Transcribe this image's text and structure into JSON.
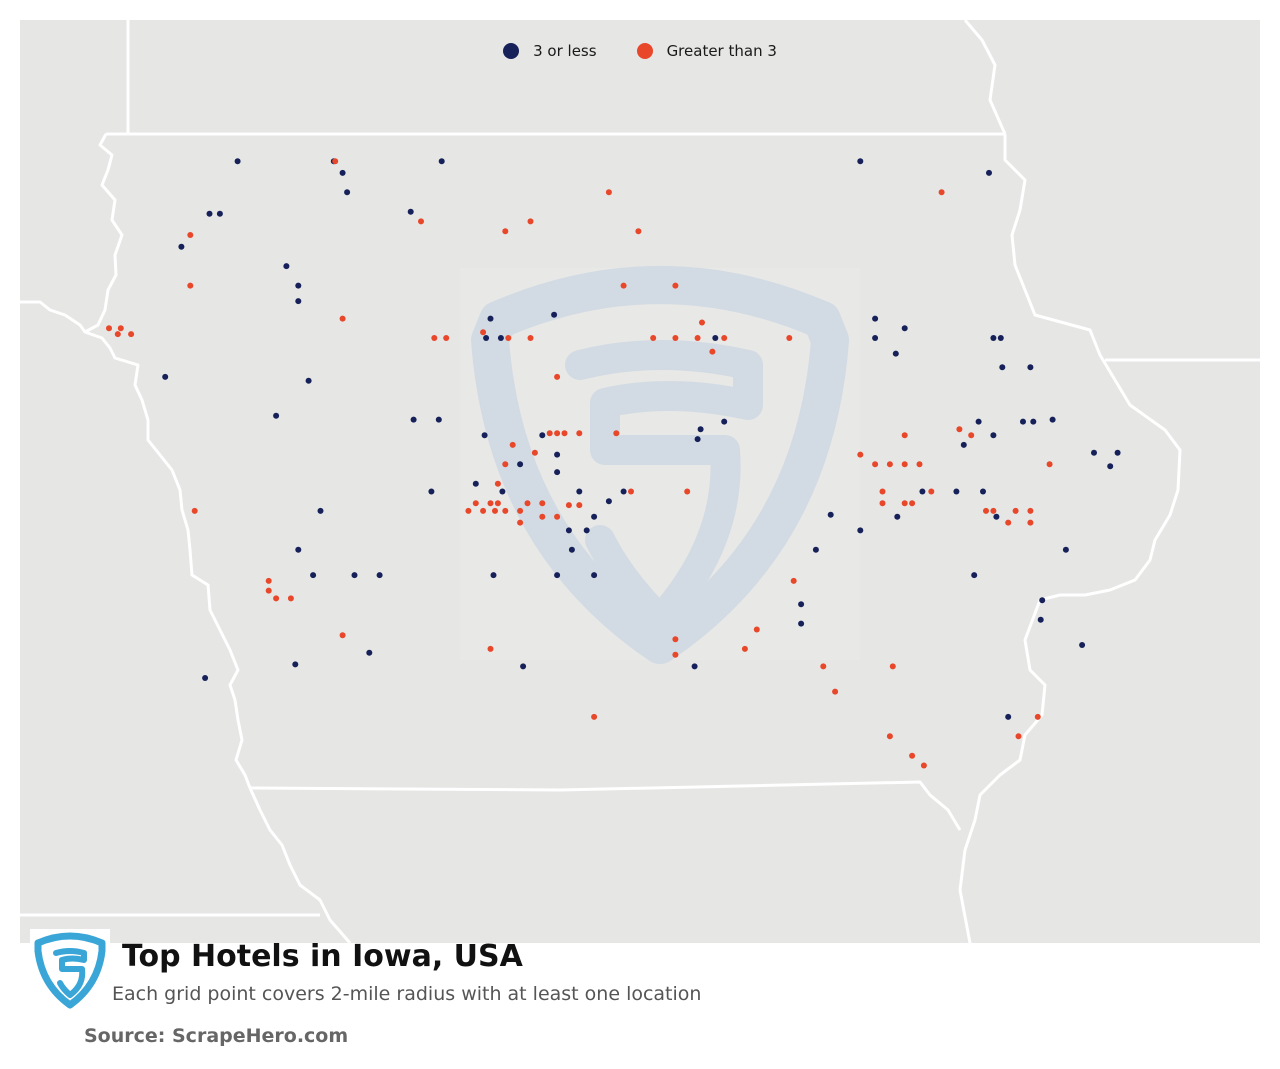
{
  "legend": {
    "items": [
      {
        "label": "3 or less",
        "color": "#16215a"
      },
      {
        "label": "Greater than 3",
        "color": "#e8472a"
      }
    ]
  },
  "footer": {
    "title": "Top Hotels in Iowa, USA",
    "subtitle": "Each grid point covers 2-mile radius with at least one location",
    "source": "Source: ScrapeHero.com",
    "logo_icon": "scrapehero-shield-logo-icon"
  },
  "map": {
    "region": "Iowa, USA",
    "colors": {
      "background": "#e6e6e4",
      "border": "#ffffff",
      "watermark": "#d2dbe3"
    },
    "points_low": [
      [
        -95.71,
        43.36
      ],
      [
        -95.06,
        43.36
      ],
      [
        -94.33,
        43.36
      ],
      [
        -91.5,
        43.36
      ],
      [
        -95.0,
        43.3
      ],
      [
        -94.97,
        43.2
      ],
      [
        -90.63,
        43.3
      ],
      [
        -95.9,
        43.09
      ],
      [
        -95.83,
        43.09
      ],
      [
        -94.54,
        43.1
      ],
      [
        -96.09,
        42.92
      ],
      [
        -95.38,
        42.82
      ],
      [
        -95.3,
        42.72
      ],
      [
        -95.3,
        42.64
      ],
      [
        -94.03,
        42.45
      ],
      [
        -93.93,
        42.45
      ],
      [
        -92.48,
        42.45
      ],
      [
        -91.4,
        42.45
      ],
      [
        -94.0,
        42.55
      ],
      [
        -91.2,
        42.5
      ],
      [
        -91.4,
        42.55
      ],
      [
        -91.26,
        42.37
      ],
      [
        -95.23,
        42.23
      ],
      [
        -94.35,
        42.03
      ],
      [
        -94.52,
        42.03
      ],
      [
        -96.2,
        42.25
      ],
      [
        -95.45,
        42.05
      ],
      [
        -92.6,
        41.93
      ],
      [
        -93.55,
        41.85
      ],
      [
        -93.2,
        41.61
      ],
      [
        -94.04,
        41.95
      ],
      [
        -92.42,
        42.02
      ],
      [
        -93.57,
        42.57
      ],
      [
        -92.58,
        41.98
      ],
      [
        -93.1,
        41.66
      ],
      [
        -93.4,
        41.66
      ],
      [
        -93.3,
        41.53
      ],
      [
        -93.35,
        41.46
      ],
      [
        -93.47,
        41.46
      ],
      [
        -93.8,
        41.8
      ],
      [
        -93.65,
        41.95
      ],
      [
        -93.55,
        41.76
      ],
      [
        -93.45,
        41.36
      ],
      [
        -93.3,
        41.23
      ],
      [
        -93.55,
        41.23
      ],
      [
        -93.98,
        41.23
      ],
      [
        -94.4,
        41.66
      ],
      [
        -94.75,
        41.23
      ],
      [
        -95.2,
        41.23
      ],
      [
        -95.3,
        41.36
      ],
      [
        -95.15,
        41.56
      ],
      [
        -94.92,
        41.23
      ],
      [
        -94.82,
        40.83
      ],
      [
        -95.32,
        40.77
      ],
      [
        -95.93,
        40.7
      ],
      [
        -93.78,
        40.76
      ],
      [
        -92.62,
        40.76
      ],
      [
        -91.9,
        40.98
      ],
      [
        -91.9,
        41.08
      ],
      [
        -91.7,
        41.54
      ],
      [
        -91.8,
        41.36
      ],
      [
        -91.5,
        41.46
      ],
      [
        -91.25,
        41.53
      ],
      [
        -91.08,
        41.66
      ],
      [
        -90.58,
        41.53
      ],
      [
        -90.67,
        41.66
      ],
      [
        -90.7,
        42.02
      ],
      [
        -90.8,
        41.9
      ],
      [
        -90.6,
        41.95
      ],
      [
        -90.4,
        42.02
      ],
      [
        -90.33,
        42.02
      ],
      [
        -90.54,
        42.3
      ],
      [
        -90.35,
        42.3
      ],
      [
        -90.55,
        42.45
      ],
      [
        -90.6,
        42.45
      ],
      [
        -90.2,
        42.03
      ],
      [
        -90.11,
        41.36
      ],
      [
        -90.73,
        41.23
      ],
      [
        -90.27,
        41.1
      ],
      [
        -90.28,
        41.0
      ],
      [
        -90.0,
        40.87
      ],
      [
        -90.5,
        40.5
      ],
      [
        -89.92,
        41.86
      ],
      [
        -89.76,
        41.86
      ],
      [
        -89.81,
        41.79
      ],
      [
        -93.92,
        41.66
      ],
      [
        -94.1,
        41.7
      ],
      [
        -90.85,
        41.66
      ]
    ],
    "points_high": [
      [
        -95.05,
        43.36
      ],
      [
        -93.2,
        43.2
      ],
      [
        -94.47,
        43.05
      ],
      [
        -93.9,
        43.0
      ],
      [
        -93.73,
        43.05
      ],
      [
        -93.0,
        43.0
      ],
      [
        -90.95,
        43.2
      ],
      [
        -96.03,
        42.98
      ],
      [
        -96.03,
        42.72
      ],
      [
        -94.38,
        42.45
      ],
      [
        -92.75,
        42.72
      ],
      [
        -93.1,
        42.72
      ],
      [
        -92.57,
        42.53
      ],
      [
        -92.6,
        42.45
      ],
      [
        -96.58,
        42.5
      ],
      [
        -96.52,
        42.47
      ],
      [
        -96.5,
        42.5
      ],
      [
        -96.43,
        42.47
      ],
      [
        -95.0,
        42.55
      ],
      [
        -94.05,
        42.48
      ],
      [
        -94.3,
        42.45
      ],
      [
        -93.88,
        42.45
      ],
      [
        -93.73,
        42.45
      ],
      [
        -92.9,
        42.45
      ],
      [
        -92.75,
        42.45
      ],
      [
        -91.98,
        42.45
      ],
      [
        -92.42,
        42.45
      ],
      [
        -92.5,
        42.38
      ],
      [
        -93.55,
        42.25
      ],
      [
        -93.6,
        41.96
      ],
      [
        -93.55,
        41.96
      ],
      [
        -93.5,
        41.96
      ],
      [
        -93.4,
        41.96
      ],
      [
        -93.15,
        41.96
      ],
      [
        -91.2,
        41.95
      ],
      [
        -90.83,
        41.98
      ],
      [
        -90.75,
        41.95
      ],
      [
        -91.5,
        41.85
      ],
      [
        -91.4,
        41.8
      ],
      [
        -91.3,
        41.8
      ],
      [
        -91.2,
        41.8
      ],
      [
        -91.1,
        41.8
      ],
      [
        -93.85,
        41.9
      ],
      [
        -93.7,
        41.86
      ],
      [
        -93.9,
        41.8
      ],
      [
        -93.95,
        41.7
      ],
      [
        -93.65,
        41.6
      ],
      [
        -93.8,
        41.5
      ],
      [
        -93.75,
        41.6
      ],
      [
        -93.47,
        41.59
      ],
      [
        -93.4,
        41.59
      ],
      [
        -93.9,
        41.56
      ],
      [
        -93.95,
        41.6
      ],
      [
        -94.05,
        41.56
      ],
      [
        -94.15,
        41.56
      ],
      [
        -94.1,
        41.6
      ],
      [
        -94.0,
        41.6
      ],
      [
        -93.97,
        41.56
      ],
      [
        -93.8,
        41.56
      ],
      [
        -93.65,
        41.53
      ],
      [
        -93.55,
        41.53
      ],
      [
        -93.05,
        41.66
      ],
      [
        -92.67,
        41.66
      ],
      [
        -91.35,
        41.66
      ],
      [
        -91.02,
        41.66
      ],
      [
        -91.35,
        41.6
      ],
      [
        -91.2,
        41.6
      ],
      [
        -91.15,
        41.6
      ],
      [
        -90.22,
        41.8
      ],
      [
        -90.6,
        41.56
      ],
      [
        -90.65,
        41.56
      ],
      [
        -90.45,
        41.56
      ],
      [
        -90.35,
        41.56
      ],
      [
        -90.35,
        41.5
      ],
      [
        -90.5,
        41.5
      ],
      [
        -96.0,
        41.56
      ],
      [
        -95.5,
        41.2
      ],
      [
        -95.5,
        41.15
      ],
      [
        -95.45,
        41.11
      ],
      [
        -95.35,
        41.11
      ],
      [
        -91.95,
        41.2
      ],
      [
        -92.2,
        40.95
      ],
      [
        -92.28,
        40.85
      ],
      [
        -91.28,
        40.76
      ],
      [
        -90.3,
        40.5
      ],
      [
        -90.43,
        40.4
      ],
      [
        -92.75,
        40.9
      ],
      [
        -92.75,
        40.82
      ],
      [
        -91.75,
        40.76
      ],
      [
        -91.67,
        40.63
      ],
      [
        -94.0,
        40.85
      ],
      [
        -95.0,
        40.92
      ],
      [
        -93.3,
        40.5
      ],
      [
        -91.3,
        40.4
      ],
      [
        -91.15,
        40.3
      ],
      [
        -91.07,
        40.25
      ]
    ]
  }
}
